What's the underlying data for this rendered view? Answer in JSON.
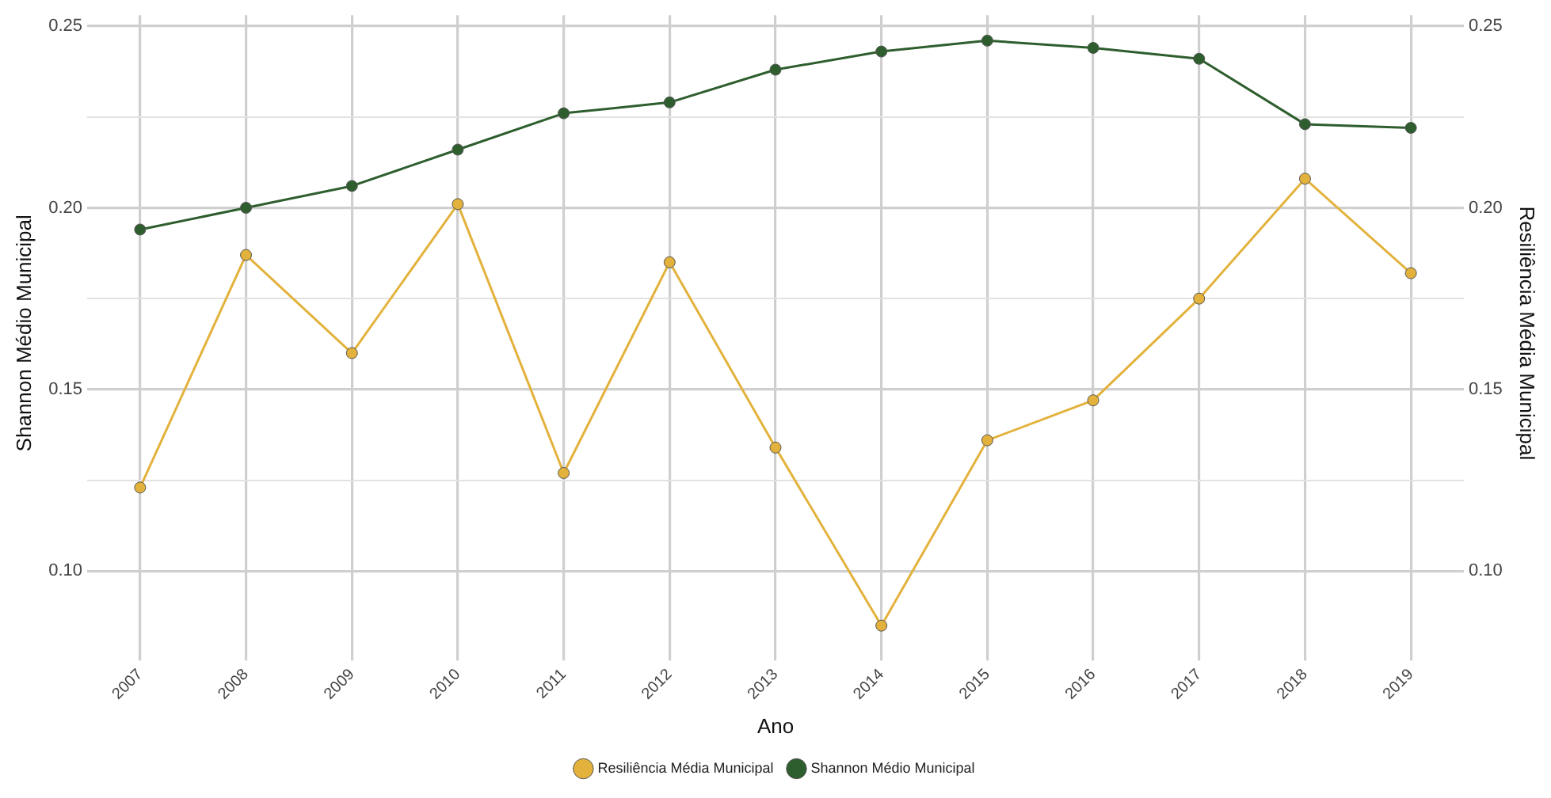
{
  "chart_data": {
    "type": "line",
    "xlabel": "Ano",
    "ylabel": "Shannon Médio Municipal",
    "y2label": "Resiliência Média Municipal",
    "categories": [
      "2007",
      "2008",
      "2009",
      "2010",
      "2011",
      "2012",
      "2013",
      "2014",
      "2015",
      "2016",
      "2017",
      "2018",
      "2019"
    ],
    "series": [
      {
        "name": "Resiliência Média Municipal",
        "color": "#e3b23c",
        "axis": "y2",
        "values": [
          0.123,
          0.187,
          0.16,
          0.201,
          0.127,
          0.185,
          0.134,
          0.085,
          0.136,
          0.147,
          0.175,
          0.208,
          0.182
        ]
      },
      {
        "name": "Shannon Médio Municipal",
        "color": "#2e5e2e",
        "values": [
          0.194,
          0.2,
          0.206,
          0.216,
          0.226,
          0.229,
          0.238,
          0.243,
          0.246,
          0.244,
          0.241,
          0.223,
          0.222
        ]
      }
    ],
    "ylim": [
      0.078,
      0.253
    ],
    "yticks": [
      {
        "value": 0.1,
        "label": "0.10"
      },
      {
        "value": 0.125,
        "label": null
      },
      0.15,
      {
        "value": 0.175,
        "label": null
      },
      {
        "value": 0.2,
        "label": "0.20"
      },
      {
        "value": 0.225,
        "label": null
      },
      0.25
    ],
    "y2lim": [
      0.078,
      0.253
    ],
    "y2ticks": [
      {
        "value": 0.1,
        "label": "0.10"
      },
      {
        "value": 0.125,
        "label": null
      },
      0.15,
      {
        "value": 0.175,
        "label": null
      },
      {
        "value": 0.2,
        "label": "0.20"
      },
      {
        "value": 0.225,
        "label": null
      },
      0.25
    ],
    "grid": true,
    "legend": "bottom",
    "marker": "circle",
    "line_style": "solid"
  }
}
